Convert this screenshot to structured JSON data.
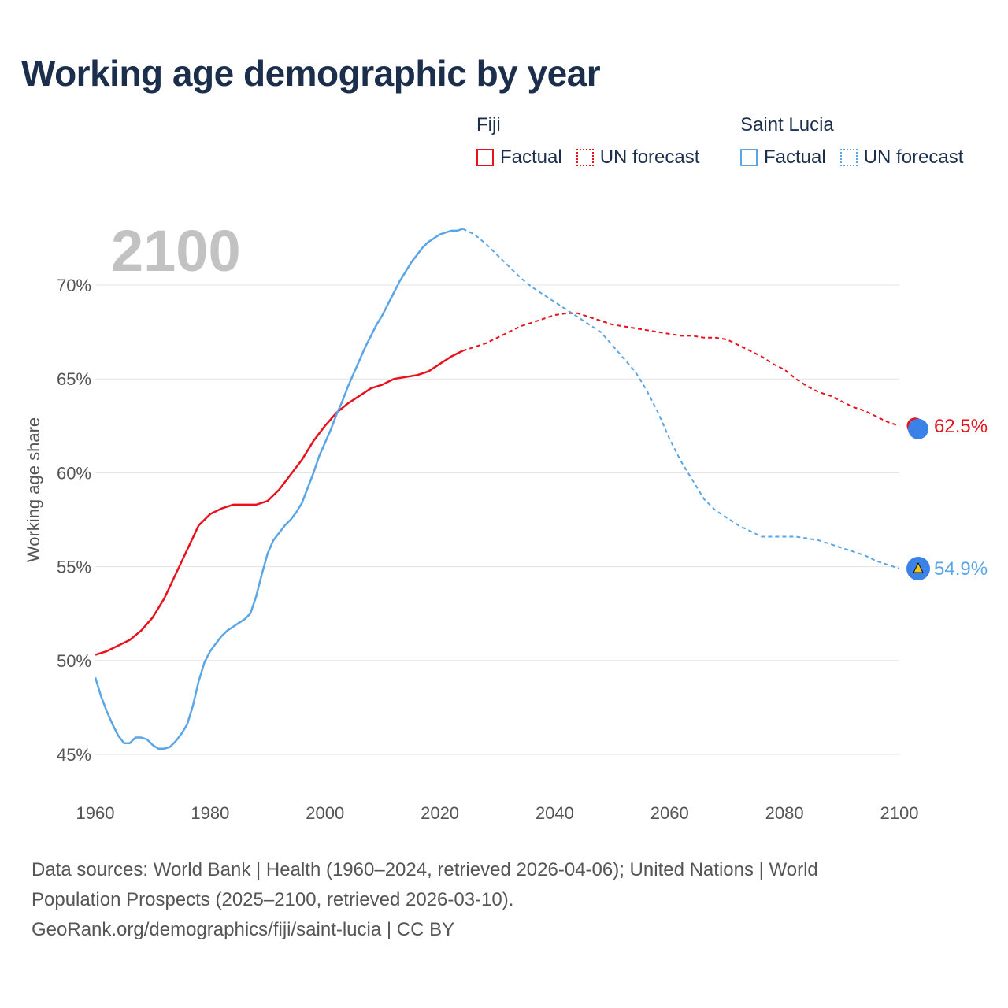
{
  "title": "Working age demographic by year",
  "legend": {
    "groups": [
      {
        "name": "Fiji",
        "color": "#e8121d",
        "items": [
          {
            "label": "Factual",
            "style": "solid"
          },
          {
            "label": "UN forecast",
            "style": "dotted"
          }
        ]
      },
      {
        "name": "Saint Lucia",
        "color": "#5aa5e6",
        "items": [
          {
            "label": "Factual",
            "style": "solid"
          },
          {
            "label": "UN forecast",
            "style": "dotted"
          }
        ]
      }
    ]
  },
  "year_label": "2100",
  "colors": {
    "fiji": "#e8121d",
    "saint_lucia": "#5aa5e6",
    "grid": "#e3e3e3",
    "axis_text": "#555555",
    "year_label": "#c2c2c2",
    "marker_blue": "#3b82e8"
  },
  "chart_data": {
    "type": "line",
    "title": "Working age demographic by year",
    "xlabel": "",
    "ylabel": "Working age share",
    "xlim": [
      1960,
      2100
    ],
    "ylim": [
      44,
      73
    ],
    "x_ticks": [
      1960,
      1980,
      2000,
      2020,
      2040,
      2060,
      2080,
      2100
    ],
    "y_ticks": [
      45,
      50,
      55,
      60,
      65,
      70
    ],
    "y_tick_labels": [
      "45%",
      "50%",
      "55%",
      "60%",
      "65%",
      "70%"
    ],
    "factual_end_year": 2024,
    "series": [
      {
        "name": "Fiji",
        "end_label": "62.5%",
        "points": [
          [
            1960,
            50.3
          ],
          [
            1962,
            50.5
          ],
          [
            1964,
            50.8
          ],
          [
            1966,
            51.1
          ],
          [
            1968,
            51.6
          ],
          [
            1970,
            52.3
          ],
          [
            1972,
            53.3
          ],
          [
            1974,
            54.6
          ],
          [
            1976,
            55.9
          ],
          [
            1978,
            57.2
          ],
          [
            1980,
            57.8
          ],
          [
            1982,
            58.1
          ],
          [
            1984,
            58.3
          ],
          [
            1986,
            58.3
          ],
          [
            1988,
            58.3
          ],
          [
            1990,
            58.5
          ],
          [
            1992,
            59.1
          ],
          [
            1994,
            59.9
          ],
          [
            1996,
            60.7
          ],
          [
            1998,
            61.7
          ],
          [
            2000,
            62.5
          ],
          [
            2002,
            63.2
          ],
          [
            2004,
            63.7
          ],
          [
            2006,
            64.1
          ],
          [
            2008,
            64.5
          ],
          [
            2010,
            64.7
          ],
          [
            2012,
            65.0
          ],
          [
            2014,
            65.1
          ],
          [
            2016,
            65.2
          ],
          [
            2018,
            65.4
          ],
          [
            2020,
            65.8
          ],
          [
            2022,
            66.2
          ],
          [
            2024,
            66.5
          ],
          [
            2026,
            66.7
          ],
          [
            2028,
            66.9
          ],
          [
            2030,
            67.2
          ],
          [
            2032,
            67.5
          ],
          [
            2034,
            67.8
          ],
          [
            2036,
            68.0
          ],
          [
            2038,
            68.2
          ],
          [
            2040,
            68.4
          ],
          [
            2042,
            68.5
          ],
          [
            2044,
            68.5
          ],
          [
            2046,
            68.3
          ],
          [
            2048,
            68.1
          ],
          [
            2050,
            67.9
          ],
          [
            2052,
            67.8
          ],
          [
            2054,
            67.7
          ],
          [
            2056,
            67.6
          ],
          [
            2058,
            67.5
          ],
          [
            2060,
            67.4
          ],
          [
            2062,
            67.3
          ],
          [
            2064,
            67.3
          ],
          [
            2066,
            67.2
          ],
          [
            2068,
            67.2
          ],
          [
            2070,
            67.1
          ],
          [
            2072,
            66.8
          ],
          [
            2074,
            66.5
          ],
          [
            2076,
            66.2
          ],
          [
            2078,
            65.8
          ],
          [
            2080,
            65.5
          ],
          [
            2082,
            65.0
          ],
          [
            2084,
            64.6
          ],
          [
            2086,
            64.3
          ],
          [
            2088,
            64.1
          ],
          [
            2090,
            63.8
          ],
          [
            2092,
            63.5
          ],
          [
            2094,
            63.3
          ],
          [
            2096,
            63.0
          ],
          [
            2098,
            62.7
          ],
          [
            2100,
            62.5
          ]
        ]
      },
      {
        "name": "Saint Lucia",
        "end_label": "54.9%",
        "points": [
          [
            1960,
            49.1
          ],
          [
            1961,
            48.1
          ],
          [
            1962,
            47.3
          ],
          [
            1963,
            46.6
          ],
          [
            1964,
            46.0
          ],
          [
            1965,
            45.6
          ],
          [
            1966,
            45.6
          ],
          [
            1967,
            45.9
          ],
          [
            1968,
            45.9
          ],
          [
            1969,
            45.8
          ],
          [
            1970,
            45.5
          ],
          [
            1971,
            45.3
          ],
          [
            1972,
            45.3
          ],
          [
            1973,
            45.4
          ],
          [
            1974,
            45.7
          ],
          [
            1975,
            46.1
          ],
          [
            1976,
            46.6
          ],
          [
            1977,
            47.6
          ],
          [
            1978,
            48.9
          ],
          [
            1979,
            49.9
          ],
          [
            1980,
            50.5
          ],
          [
            1981,
            50.9
          ],
          [
            1982,
            51.3
          ],
          [
            1983,
            51.6
          ],
          [
            1984,
            51.8
          ],
          [
            1985,
            52.0
          ],
          [
            1986,
            52.2
          ],
          [
            1987,
            52.5
          ],
          [
            1988,
            53.4
          ],
          [
            1989,
            54.6
          ],
          [
            1990,
            55.7
          ],
          [
            1991,
            56.4
          ],
          [
            1992,
            56.8
          ],
          [
            1993,
            57.2
          ],
          [
            1994,
            57.5
          ],
          [
            1995,
            57.9
          ],
          [
            1996,
            58.4
          ],
          [
            1997,
            59.2
          ],
          [
            1998,
            60.0
          ],
          [
            1999,
            60.9
          ],
          [
            2000,
            61.6
          ],
          [
            2001,
            62.3
          ],
          [
            2002,
            63.1
          ],
          [
            2003,
            63.8
          ],
          [
            2004,
            64.6
          ],
          [
            2005,
            65.3
          ],
          [
            2006,
            66.0
          ],
          [
            2007,
            66.7
          ],
          [
            2008,
            67.3
          ],
          [
            2009,
            67.9
          ],
          [
            2010,
            68.4
          ],
          [
            2011,
            69.0
          ],
          [
            2012,
            69.6
          ],
          [
            2013,
            70.2
          ],
          [
            2014,
            70.7
          ],
          [
            2015,
            71.2
          ],
          [
            2016,
            71.6
          ],
          [
            2017,
            72.0
          ],
          [
            2018,
            72.3
          ],
          [
            2019,
            72.5
          ],
          [
            2020,
            72.7
          ],
          [
            2021,
            72.8
          ],
          [
            2022,
            72.9
          ],
          [
            2023,
            72.9
          ],
          [
            2024,
            73.0
          ],
          [
            2026,
            72.7
          ],
          [
            2028,
            72.2
          ],
          [
            2030,
            71.6
          ],
          [
            2032,
            71.0
          ],
          [
            2034,
            70.4
          ],
          [
            2036,
            69.9
          ],
          [
            2038,
            69.5
          ],
          [
            2040,
            69.1
          ],
          [
            2042,
            68.7
          ],
          [
            2044,
            68.3
          ],
          [
            2046,
            67.9
          ],
          [
            2048,
            67.5
          ],
          [
            2050,
            66.8
          ],
          [
            2052,
            66.1
          ],
          [
            2054,
            65.4
          ],
          [
            2056,
            64.4
          ],
          [
            2058,
            63.2
          ],
          [
            2060,
            61.8
          ],
          [
            2062,
            60.6
          ],
          [
            2064,
            59.6
          ],
          [
            2066,
            58.6
          ],
          [
            2068,
            58.0
          ],
          [
            2070,
            57.6
          ],
          [
            2072,
            57.2
          ],
          [
            2074,
            56.9
          ],
          [
            2076,
            56.6
          ],
          [
            2078,
            56.6
          ],
          [
            2080,
            56.6
          ],
          [
            2082,
            56.6
          ],
          [
            2084,
            56.5
          ],
          [
            2086,
            56.4
          ],
          [
            2088,
            56.2
          ],
          [
            2090,
            56.0
          ],
          [
            2092,
            55.8
          ],
          [
            2094,
            55.6
          ],
          [
            2096,
            55.3
          ],
          [
            2098,
            55.1
          ],
          [
            2100,
            54.9
          ]
        ]
      }
    ]
  },
  "source": {
    "line1": "Data sources: World Bank | Health (1960–2024, retrieved 2026-04-06); United Nations | World",
    "line2": "Population Prospects (2025–2100, retrieved 2026-03-10).",
    "line3": "GeoRank.org/demographics/fiji/saint-lucia | CC BY"
  }
}
